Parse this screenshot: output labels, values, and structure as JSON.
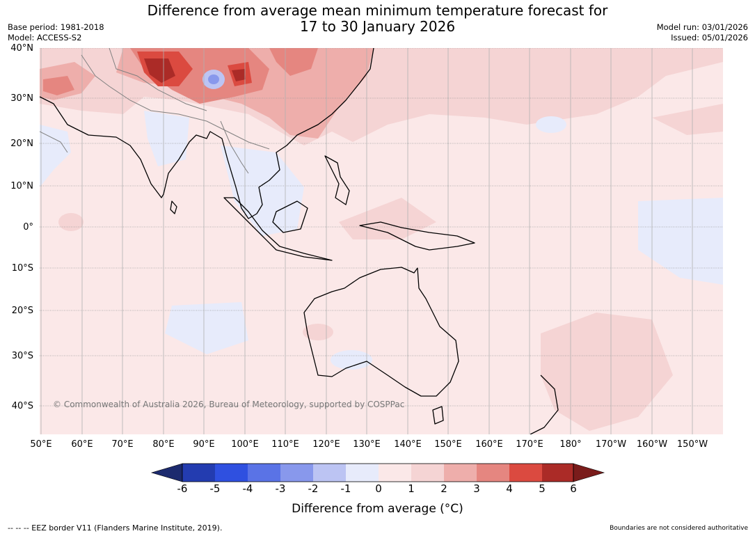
{
  "title": {
    "line1": "Difference from average mean minimum temperature forecast for",
    "line2": "17 to 30 January 2026"
  },
  "meta_left": {
    "base_period": "Base period: 1981-2018",
    "model": "Model: ACCESS-S2"
  },
  "meta_right": {
    "model_run": "Model run: 03/01/2026",
    "issued": "Issued: 05/01/2026"
  },
  "lat_labels": [
    "40°N",
    "30°N",
    "20°N",
    "10°N",
    "0°",
    "10°S",
    "20°S",
    "30°S",
    "40°S"
  ],
  "lon_labels": [
    "50°E",
    "60°E",
    "70°E",
    "80°E",
    "90°E",
    "100°E",
    "110°E",
    "120°E",
    "130°E",
    "140°E",
    "150°E",
    "160°E",
    "170°E",
    "180°",
    "170°W",
    "160°W",
    "150°W"
  ],
  "copyright": "© Commonwealth of Australia 2026, Bureau of Meteorology, supported by COSPPac",
  "colorbar": {
    "ticks": [
      "-6",
      "-5",
      "-4",
      "-3",
      "-2",
      "-1",
      "0",
      "1",
      "2",
      "3",
      "4",
      "5",
      "6"
    ],
    "colors": [
      "#1c2a6e",
      "#233cb0",
      "#2f50e0",
      "#5a73e6",
      "#8898ec",
      "#bcc4f3",
      "#e7ebfb",
      "#fbe8e8",
      "#f5d4d4",
      "#eeaeab",
      "#e58680",
      "#db4a40",
      "#ab2b27",
      "#7a1c1b"
    ],
    "label": "Difference from average (°C)"
  },
  "footer_left": "--  --  -- EEZ border V11 (Flanders Marine Institute, 2019).",
  "footer_right": "Boundaries are not considered authoritative"
}
